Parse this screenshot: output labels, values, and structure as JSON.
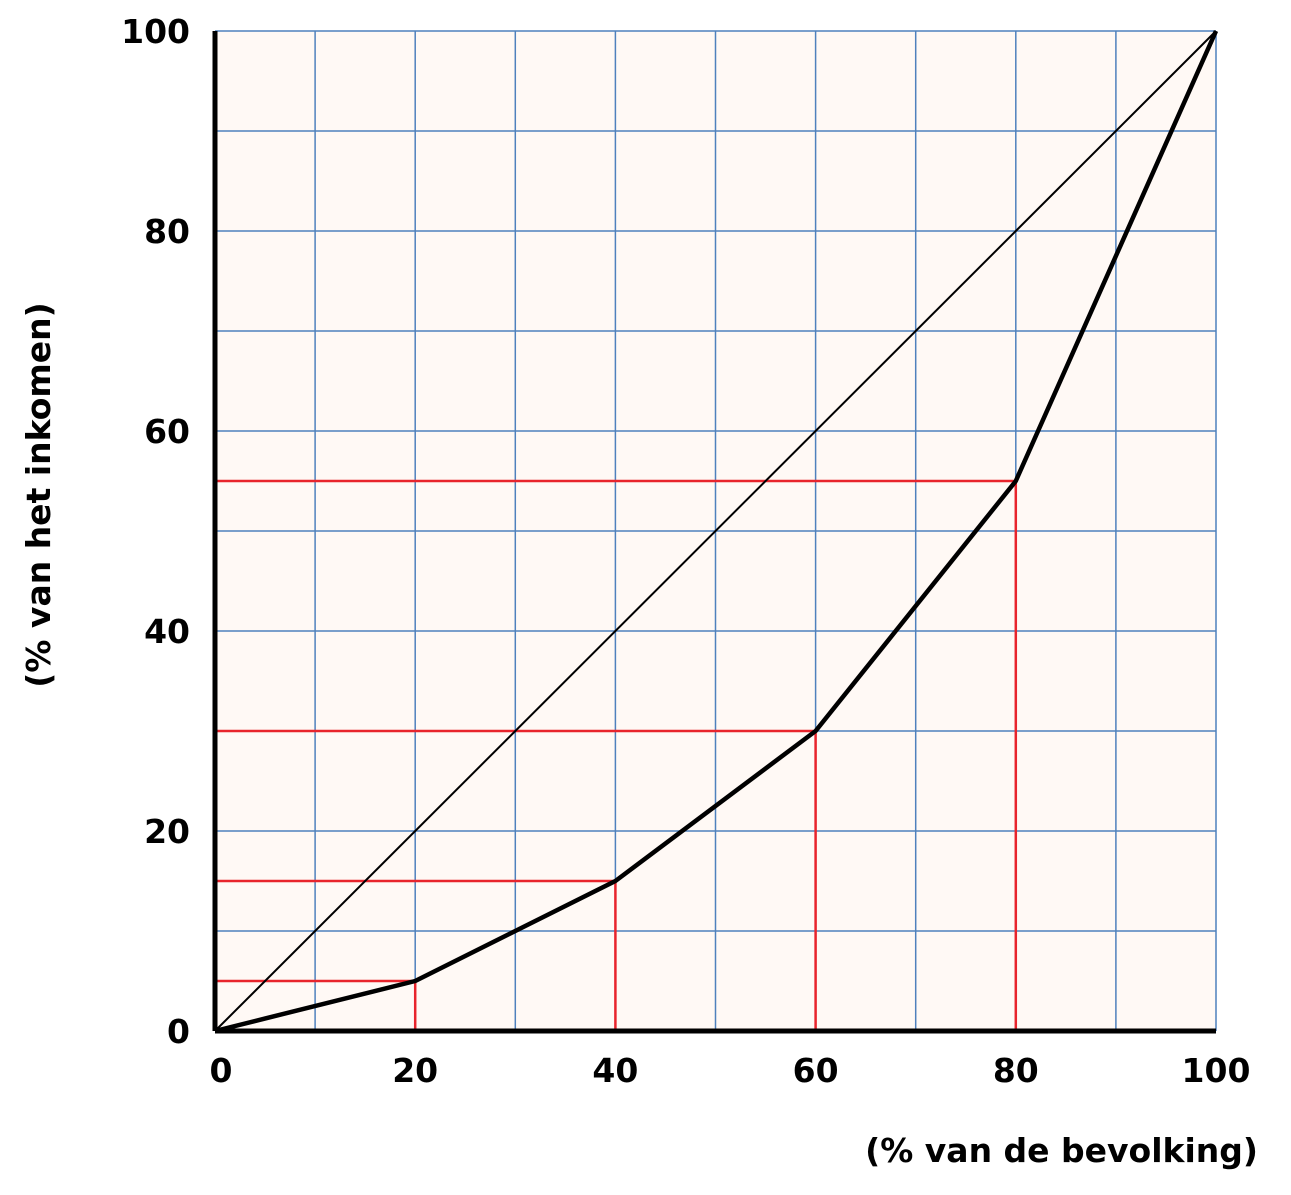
{
  "chart_data": {
    "type": "line",
    "xlabel": "(% van de bevolking)",
    "ylabel": "(% van het inkomen)",
    "series": [
      {
        "x": [
          0,
          100
        ],
        "values": [
          0,
          100
        ],
        "color": "#000000"
      },
      {
        "x": [
          0,
          20,
          40,
          60,
          80,
          100
        ],
        "values": [
          0,
          5,
          15,
          30,
          55,
          100
        ],
        "color": "#000000",
        "guides": true,
        "guide_color": "#e8242c"
      }
    ],
    "xlim": [
      0,
      100
    ],
    "ylim": [
      0,
      100
    ],
    "xticks": [
      0,
      20,
      40,
      60,
      80,
      100
    ],
    "yticks": [
      0,
      20,
      40,
      60,
      80,
      100
    ],
    "xminor": [
      10,
      30,
      50,
      70,
      90
    ],
    "yminor": [
      10,
      30,
      50,
      70,
      90
    ],
    "grid": true,
    "grid_color": "#4f81bd",
    "background": "#fff9f5"
  }
}
